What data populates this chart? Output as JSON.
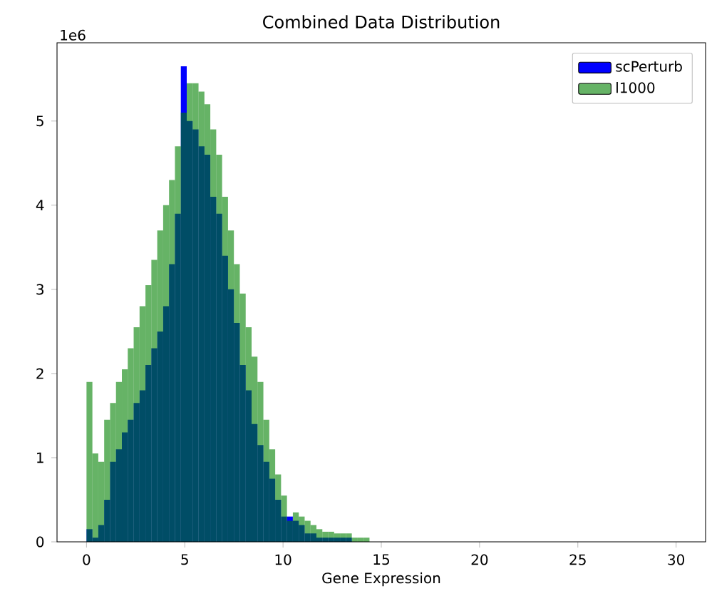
{
  "chart_data": {
    "type": "histogram",
    "title": "Combined Data Distribution",
    "xlabel": "Gene Expression",
    "annotations": [
      "1e6"
    ],
    "bins": [
      0,
      0.3,
      0.6,
      0.9,
      1.2,
      1.5,
      1.8,
      2.1,
      2.4,
      2.7,
      3,
      3.3,
      3.6,
      3.9,
      4.2,
      4.5,
      4.8,
      5.1,
      5.4,
      5.7,
      6,
      6.3,
      6.6,
      6.9,
      7.2,
      7.5,
      7.8,
      8.1,
      8.4,
      8.7,
      9,
      9.3,
      9.6,
      9.9,
      10.2,
      10.5,
      10.8,
      11.1,
      11.4,
      11.7,
      12,
      12.3,
      12.6,
      12.9,
      13.2,
      13.5,
      13.8,
      14.1,
      14.4,
      14.7,
      15
    ],
    "series": [
      {
        "name": "scPerturb",
        "color": "#0000ff",
        "values": [
          0.15,
          0.05,
          0.2,
          0.5,
          0.95,
          1.1,
          1.3,
          1.45,
          1.65,
          1.8,
          2.1,
          2.3,
          2.5,
          2.8,
          3.3,
          3.9,
          5.65,
          5.0,
          4.9,
          4.7,
          4.6,
          4.1,
          3.9,
          3.4,
          3.0,
          2.6,
          2.1,
          1.8,
          1.4,
          1.15,
          0.95,
          0.75,
          0.5,
          0.3,
          0.3,
          0.25,
          0.2,
          0.1,
          0.1,
          0.05,
          0.05,
          0.05,
          0.05,
          0.05,
          0.05,
          0,
          0,
          0,
          0,
          0
        ]
      },
      {
        "name": "l1000",
        "color": "#008000",
        "values": [
          1.9,
          1.05,
          0.95,
          1.45,
          1.65,
          1.9,
          2.05,
          2.3,
          2.55,
          2.8,
          3.05,
          3.35,
          3.7,
          4.0,
          4.3,
          4.7,
          5.1,
          5.45,
          5.45,
          5.35,
          5.2,
          4.9,
          4.6,
          4.1,
          3.7,
          3.3,
          2.95,
          2.55,
          2.2,
          1.9,
          1.45,
          1.1,
          0.8,
          0.55,
          0.25,
          0.35,
          0.3,
          0.25,
          0.2,
          0.15,
          0.12,
          0.12,
          0.1,
          0.1,
          0.1,
          0.05,
          0.05,
          0.05,
          0,
          0
        ]
      }
    ],
    "xlim": [
      -1.5,
      31.5
    ],
    "ylim": [
      0,
      5.93
    ],
    "xticks": [
      0,
      5,
      10,
      15,
      20,
      25,
      30
    ],
    "yticks": [
      0,
      1,
      2,
      3,
      4,
      5
    ],
    "grid": false,
    "legend": "top right"
  }
}
